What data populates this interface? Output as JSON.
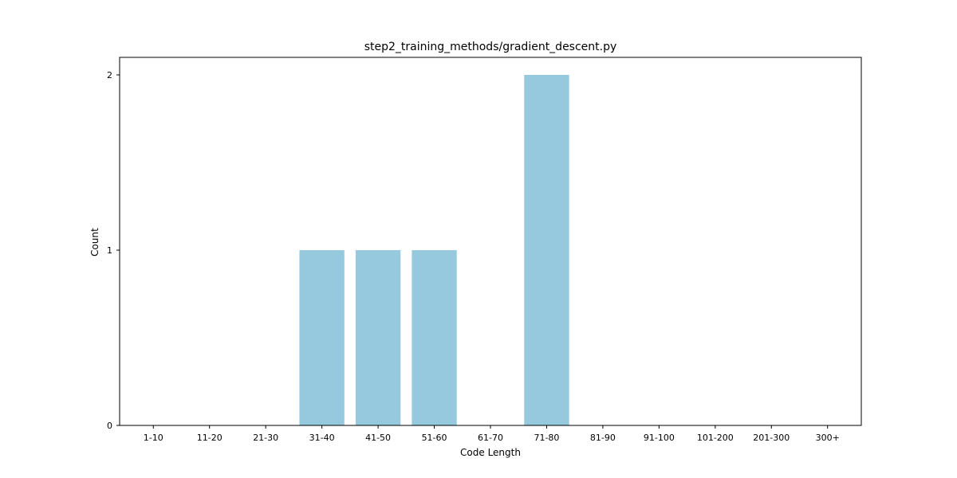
{
  "chart_data": {
    "type": "bar",
    "title": "step2_training_methods/gradient_descent.py",
    "xlabel": "Code Length",
    "ylabel": "Count",
    "categories": [
      "1-10",
      "11-20",
      "21-30",
      "31-40",
      "41-50",
      "51-60",
      "61-70",
      "71-80",
      "81-90",
      "91-100",
      "101-200",
      "201-300",
      "300+"
    ],
    "values": [
      0,
      0,
      0,
      1,
      1,
      1,
      0,
      2,
      0,
      0,
      0,
      0,
      0
    ],
    "ylim": [
      0,
      2.1
    ],
    "yticks": [
      0,
      1,
      2
    ],
    "grid": false,
    "legend": "none",
    "bar_color": "#96c9dd"
  }
}
